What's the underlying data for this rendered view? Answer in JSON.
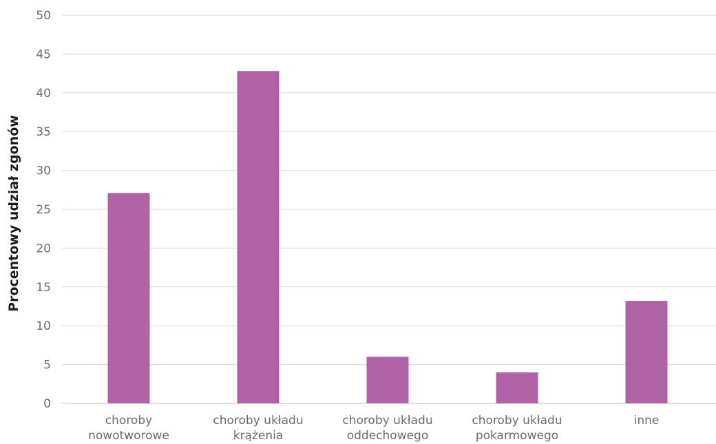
{
  "chart_data": {
    "type": "bar",
    "title": "",
    "xlabel": "",
    "ylabel": "Procentowy udział zgonów",
    "ylim": [
      0,
      50
    ],
    "yticks": [
      0,
      5,
      10,
      15,
      20,
      25,
      30,
      35,
      40,
      45,
      50
    ],
    "grid": true,
    "categories": [
      [
        "choroby",
        "nowotworowe"
      ],
      [
        "choroby układu",
        "krążenia"
      ],
      [
        "choroby układu",
        "oddechowego"
      ],
      [
        "choroby układu",
        "pokarmowego"
      ],
      [
        "inne"
      ]
    ],
    "values": [
      27.1,
      42.8,
      6.0,
      4.0,
      13.2
    ],
    "colors": {
      "bar": "#b062a6",
      "grid": "#d9d9d9",
      "axis": "#bfbfbf"
    }
  }
}
